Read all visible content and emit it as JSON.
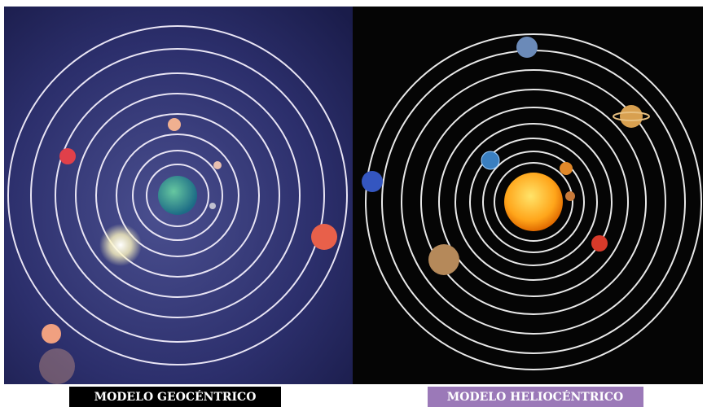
{
  "panels": [
    {
      "label": "MODELO GEOCÉNTRICO"
    },
    {
      "label": "MODELO HELIOCÉNTRICO"
    }
  ]
}
